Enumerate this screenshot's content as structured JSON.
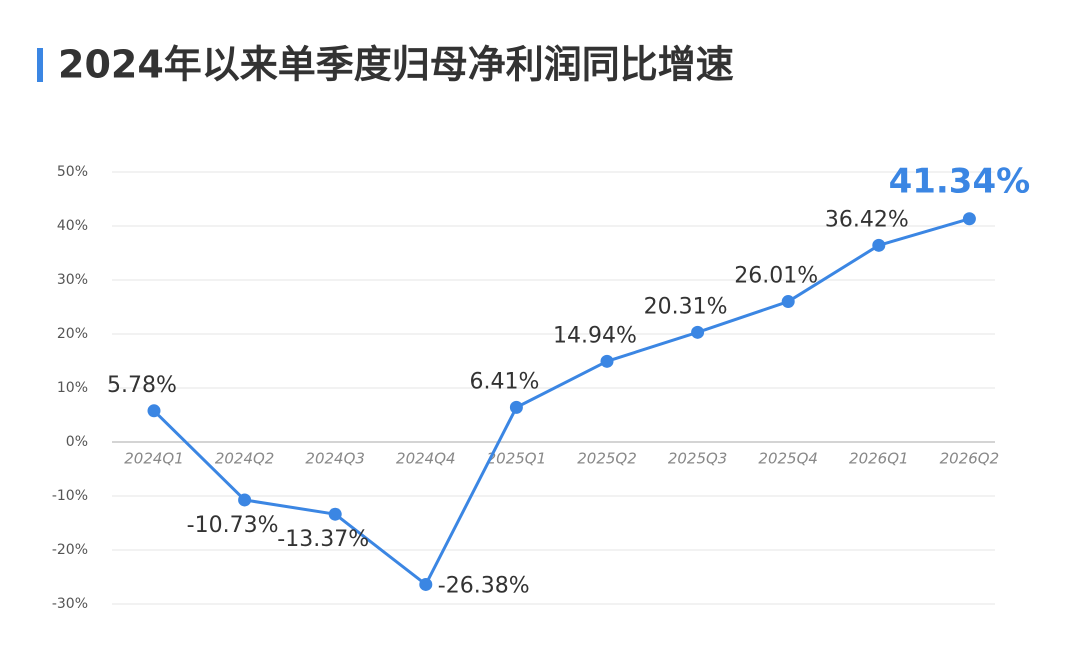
{
  "chart_data": {
    "type": "line",
    "title": "2024年以来单季度归母净利润同比增速",
    "categories": [
      "2024Q1",
      "2024Q2",
      "2024Q3",
      "2024Q4",
      "2025Q1",
      "2025Q2",
      "2025Q3",
      "2025Q4",
      "2026Q1",
      "2026Q2"
    ],
    "series": [
      {
        "name": "归母净利润同比增速",
        "color": "#3b86e3",
        "values": [
          5.78,
          -10.73,
          -13.37,
          -26.38,
          6.41,
          14.94,
          20.31,
          26.01,
          36.42,
          41.34
        ],
        "value_labels": [
          "5.78%",
          "-10.73%",
          "-13.37%",
          "-26.38%",
          "6.41%",
          "14.94%",
          "20.31%",
          "26.01%",
          "36.42%",
          "41.34%"
        ]
      }
    ],
    "ylim": [
      -30,
      50
    ],
    "yticks": [
      {
        "value": -30,
        "label": "-30%"
      },
      {
        "value": -20,
        "label": "-20%"
      },
      {
        "value": -10,
        "label": "-10%"
      },
      {
        "value": 0,
        "label": "0%"
      },
      {
        "value": 10,
        "label": "10%"
      },
      {
        "value": 20,
        "label": "20%"
      },
      {
        "value": 30,
        "label": "30%"
      },
      {
        "value": 40,
        "label": "40%"
      },
      {
        "value": 50,
        "label": "50%"
      }
    ],
    "grid": true
  }
}
